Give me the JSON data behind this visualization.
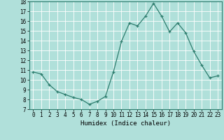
{
  "x": [
    0,
    1,
    2,
    3,
    4,
    5,
    6,
    7,
    8,
    9,
    10,
    11,
    12,
    13,
    14,
    15,
    16,
    17,
    18,
    19,
    20,
    21,
    22,
    23
  ],
  "y": [
    10.8,
    10.6,
    9.5,
    8.8,
    8.5,
    8.2,
    8.0,
    7.5,
    7.8,
    8.3,
    10.8,
    13.9,
    15.8,
    15.5,
    16.5,
    17.8,
    16.5,
    14.9,
    15.8,
    14.8,
    12.9,
    11.5,
    10.2,
    10.4
  ],
  "xlabel": "Humidex (Indice chaleur)",
  "ylim": [
    7,
    18
  ],
  "xlim": [
    -0.5,
    23.5
  ],
  "yticks": [
    7,
    8,
    9,
    10,
    11,
    12,
    13,
    14,
    15,
    16,
    17,
    18
  ],
  "xticks": [
    0,
    1,
    2,
    3,
    4,
    5,
    6,
    7,
    8,
    9,
    10,
    11,
    12,
    13,
    14,
    15,
    16,
    17,
    18,
    19,
    20,
    21,
    22,
    23
  ],
  "line_color": "#2e7d6e",
  "marker": "+",
  "bg_color": "#b0e0da",
  "grid_color": "#ffffff",
  "axis_color": "#2e7d6e",
  "tick_label_fontsize": 5.5,
  "xlabel_fontsize": 6.5
}
